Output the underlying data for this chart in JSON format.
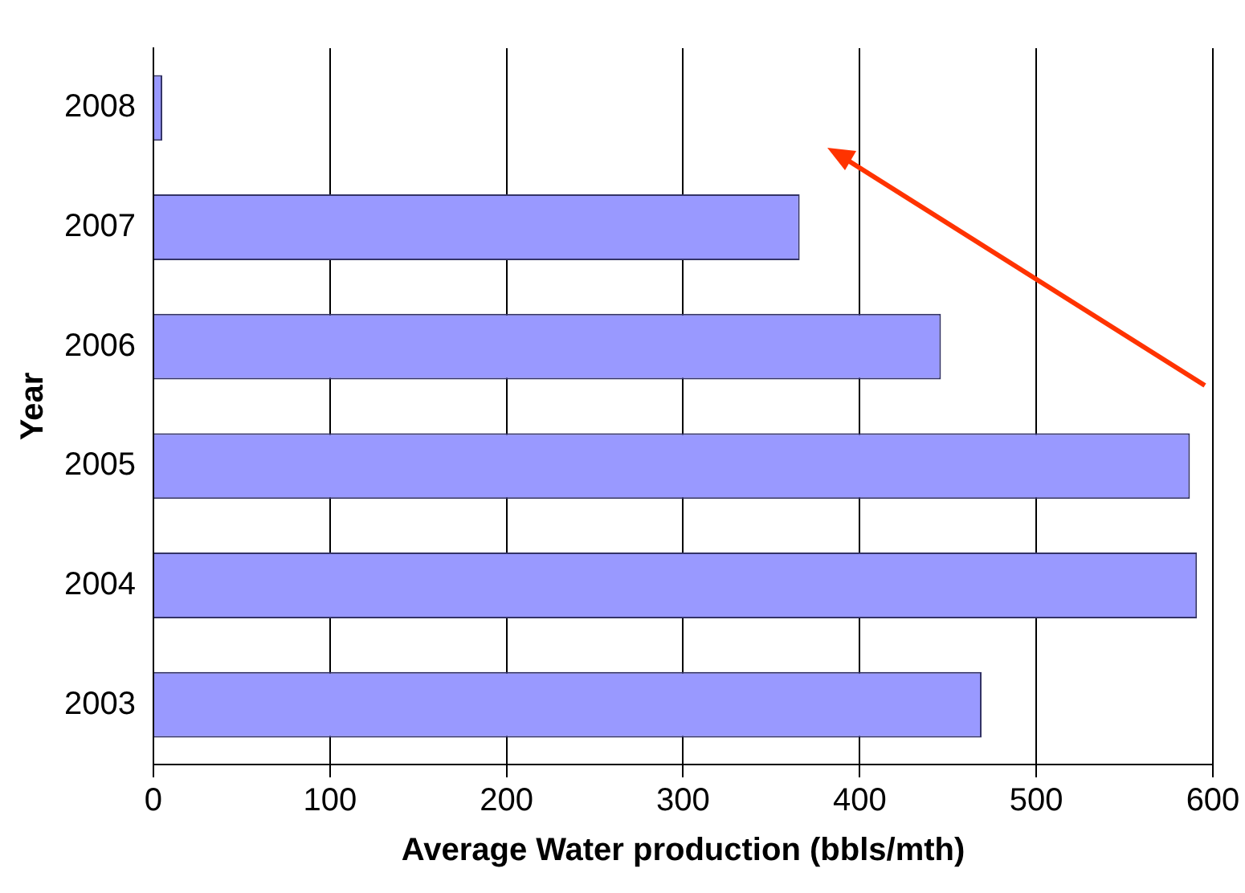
{
  "chart_data": {
    "type": "bar",
    "orientation": "horizontal",
    "xlabel": "Average Water production (bbls/mth)",
    "ylabel": "Year",
    "categories": [
      "2008",
      "2007",
      "2006",
      "2005",
      "2004",
      "2003"
    ],
    "values": [
      5,
      366,
      446,
      587,
      591,
      469
    ],
    "color": "#9999ff",
    "xlim": [
      0,
      600
    ],
    "xticks": [
      0,
      100,
      200,
      300,
      400,
      500,
      600
    ],
    "grid": "x",
    "legend": false
  }
}
